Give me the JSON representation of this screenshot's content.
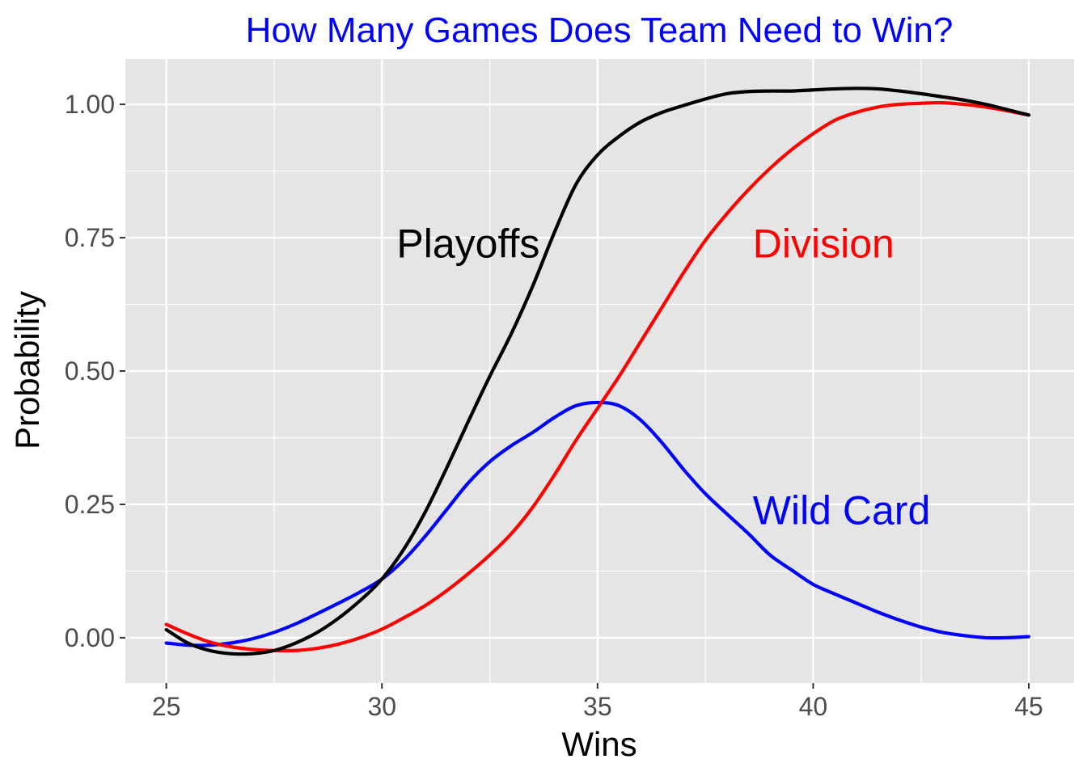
{
  "chart_data": {
    "type": "line",
    "title": "How Many Games Does Team Need to Win?",
    "xlabel": "Wins",
    "ylabel": "Probability",
    "xlim": [
      24.05,
      46.05
    ],
    "ylim": [
      -0.085,
      1.085
    ],
    "x_ticks": [
      25,
      30,
      35,
      40,
      45
    ],
    "x_tick_labels": [
      "25",
      "30",
      "35",
      "40",
      "45"
    ],
    "y_ticks": [
      0,
      0.25,
      0.5,
      0.75,
      1
    ],
    "y_tick_labels": [
      "0.00",
      "0.25",
      "0.50",
      "0.75",
      "1.00"
    ],
    "grid": true,
    "legend": "none (direct labels)",
    "background_color": "#e5e5e5",
    "series": [
      {
        "name": "Playoffs",
        "color": "#000000",
        "label_at": [
          32,
          0.74
        ],
        "x": [
          25,
          25.5,
          26,
          26.5,
          27,
          27.5,
          28,
          28.5,
          29,
          29.5,
          30,
          30.5,
          31,
          31.5,
          32,
          32.5,
          33,
          33.5,
          34,
          34.5,
          35,
          35.5,
          36,
          36.5,
          37,
          37.5,
          38,
          38.5,
          39,
          39.5,
          40,
          40.5,
          41,
          41.5,
          42,
          42.5,
          43,
          43.5,
          44,
          44.5,
          45
        ],
        "values": [
          0.015,
          -0.01,
          -0.024,
          -0.03,
          -0.03,
          -0.024,
          -0.01,
          0.01,
          0.037,
          0.07,
          0.11,
          0.165,
          0.235,
          0.318,
          0.405,
          0.49,
          0.57,
          0.66,
          0.76,
          0.85,
          0.905,
          0.94,
          0.967,
          0.985,
          0.998,
          1.01,
          1.02,
          1.024,
          1.025,
          1.025,
          1.027,
          1.029,
          1.03,
          1.029,
          1.025,
          1.02,
          1.014,
          1.008,
          1.0,
          0.99,
          0.98
        ]
      },
      {
        "name": "Division",
        "color": "#ff0000",
        "label_at": [
          38.6,
          0.74
        ],
        "x": [
          25,
          25.5,
          26,
          26.5,
          27,
          27.5,
          28,
          28.5,
          29,
          29.5,
          30,
          30.5,
          31,
          31.5,
          32,
          32.5,
          33,
          33.5,
          34,
          34.5,
          35,
          35.5,
          36,
          36.5,
          37,
          37.5,
          38,
          38.5,
          39,
          39.5,
          40,
          40.5,
          41,
          41.5,
          42,
          42.5,
          43,
          43.5,
          44,
          44.5,
          45
        ],
        "values": [
          0.025,
          0.007,
          -0.008,
          -0.017,
          -0.022,
          -0.024,
          -0.024,
          -0.02,
          -0.012,
          0.0,
          0.016,
          0.037,
          0.06,
          0.088,
          0.12,
          0.155,
          0.195,
          0.245,
          0.305,
          0.37,
          0.43,
          0.49,
          0.555,
          0.62,
          0.685,
          0.745,
          0.795,
          0.84,
          0.88,
          0.915,
          0.945,
          0.97,
          0.985,
          0.995,
          1.0,
          1.002,
          1.003,
          1.0,
          0.995,
          0.988,
          0.98
        ]
      },
      {
        "name": "Wild Card",
        "color": "#0000ff",
        "label_at": [
          38.6,
          0.24
        ],
        "x": [
          25,
          25.5,
          26,
          26.5,
          27,
          27.5,
          28,
          28.5,
          29,
          29.5,
          30,
          30.5,
          31,
          31.5,
          32,
          32.5,
          33,
          33.5,
          34,
          34.5,
          35,
          35.5,
          36,
          36.5,
          37,
          37.5,
          38,
          38.5,
          39,
          39.5,
          40,
          40.5,
          41,
          41.5,
          42,
          42.5,
          43,
          43.5,
          44,
          44.5,
          45
        ],
        "values": [
          -0.01,
          -0.014,
          -0.014,
          -0.01,
          -0.002,
          0.01,
          0.026,
          0.045,
          0.065,
          0.086,
          0.11,
          0.145,
          0.19,
          0.24,
          0.29,
          0.33,
          0.36,
          0.385,
          0.413,
          0.435,
          0.441,
          0.435,
          0.408,
          0.365,
          0.315,
          0.27,
          0.232,
          0.195,
          0.155,
          0.127,
          0.1,
          0.082,
          0.065,
          0.048,
          0.033,
          0.02,
          0.01,
          0.004,
          0.0,
          0.0,
          0.002
        ]
      }
    ]
  }
}
